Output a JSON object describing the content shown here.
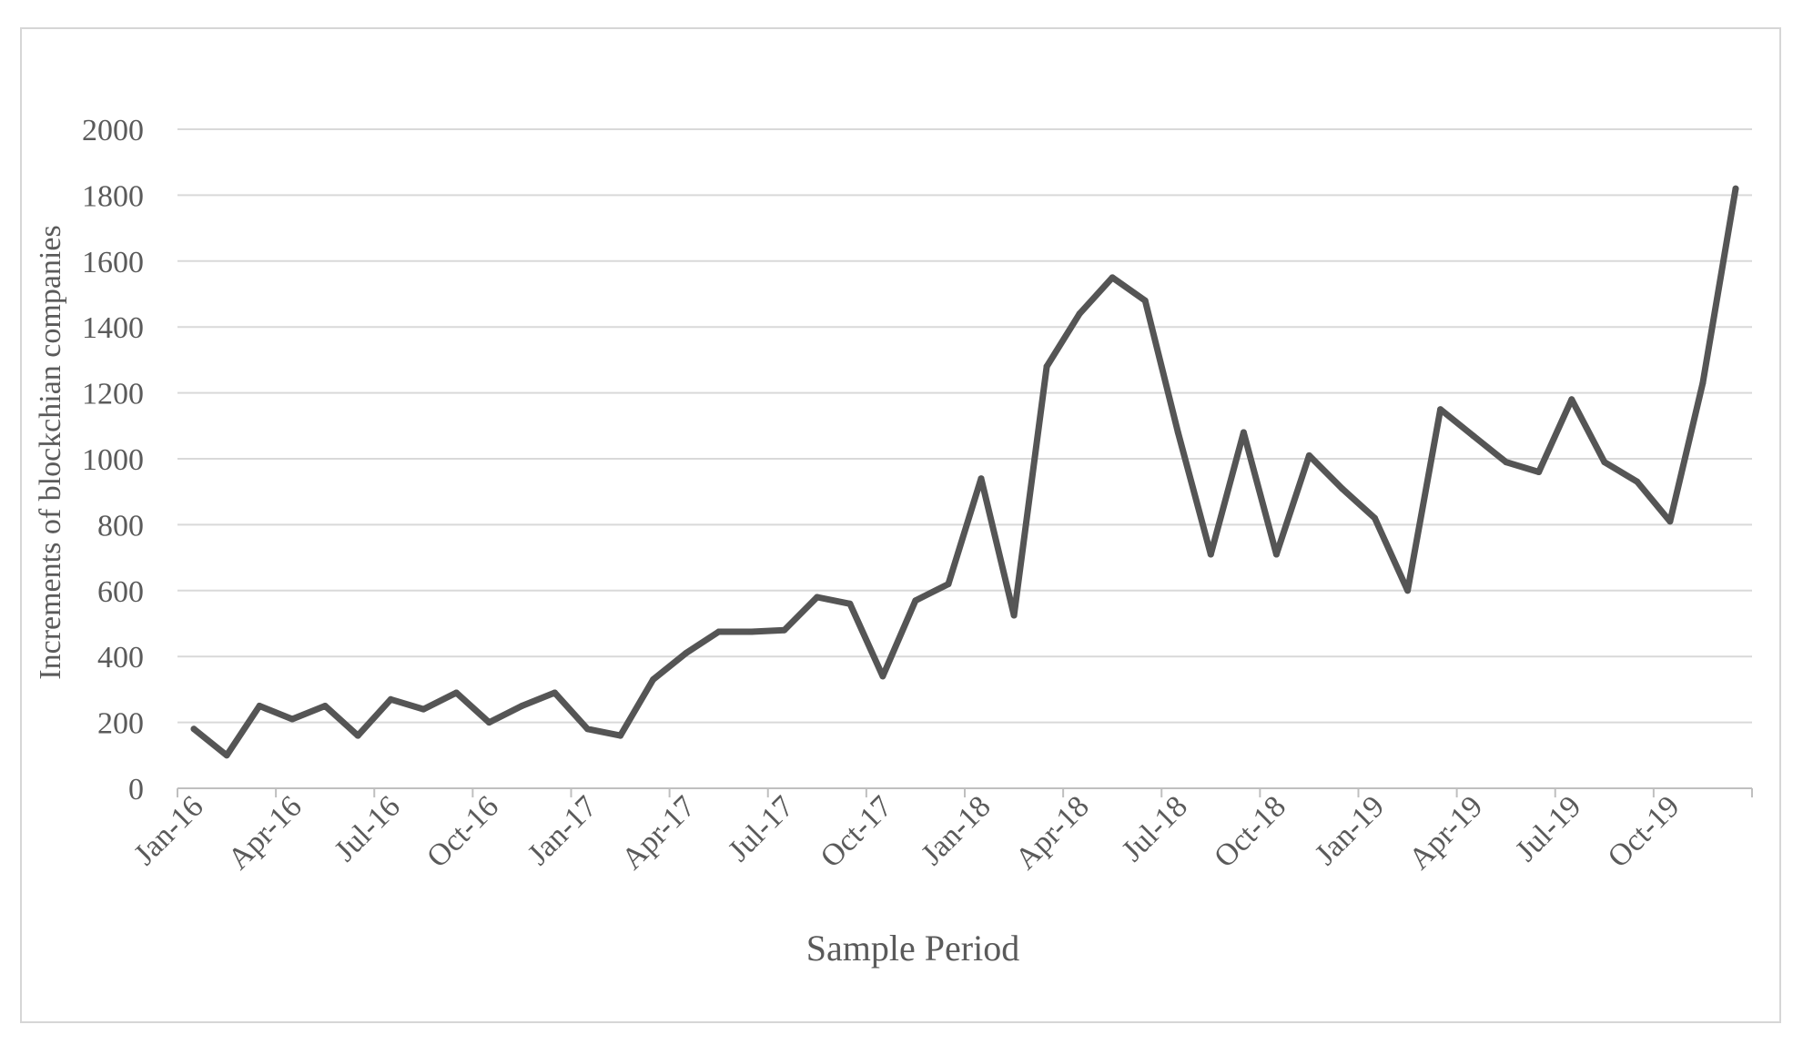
{
  "chart_data": {
    "type": "line",
    "title": "",
    "xlabel": "Sample Period",
    "ylabel": "Increments of blockchian companies",
    "ylim": [
      0,
      2000
    ],
    "yticks": [
      0,
      200,
      400,
      600,
      800,
      1000,
      1200,
      1400,
      1600,
      1800,
      2000
    ],
    "grid": true,
    "legend": "none",
    "colors": {
      "line": "#555555",
      "grid": "#d9d9d9",
      "axis": "#bfbfbf",
      "text": "#5a5a5a"
    },
    "x": [
      "Jan-16",
      "Feb-16",
      "Mar-16",
      "Apr-16",
      "May-16",
      "Jun-16",
      "Jul-16",
      "Aug-16",
      "Sep-16",
      "Oct-16",
      "Nov-16",
      "Dec-16",
      "Jan-17",
      "Feb-17",
      "Mar-17",
      "Apr-17",
      "May-17",
      "Jun-17",
      "Jul-17",
      "Aug-17",
      "Sep-17",
      "Oct-17",
      "Nov-17",
      "Dec-17",
      "Jan-18",
      "Feb-18",
      "Mar-18",
      "Apr-18",
      "May-18",
      "Jun-18",
      "Jul-18",
      "Aug-18",
      "Sep-18",
      "Oct-18",
      "Nov-18",
      "Dec-18",
      "Jan-19",
      "Feb-19",
      "Mar-19",
      "Apr-19",
      "May-19",
      "Jun-19",
      "Jul-19",
      "Aug-19",
      "Sep-19",
      "Oct-19",
      "Nov-19",
      "Dec-19"
    ],
    "x_tick_labels": [
      "Jan-16",
      "Apr-16",
      "Jul-16",
      "Oct-16",
      "Jan-17",
      "Apr-17",
      "Jul-17",
      "Oct-17",
      "Jan-18",
      "Apr-18",
      "Jul-18",
      "Oct-18",
      "Jan-19",
      "Apr-19",
      "Jul-19",
      "Oct-19"
    ],
    "series": [
      {
        "values": [
          180,
          100,
          250,
          210,
          250,
          160,
          270,
          240,
          290,
          200,
          250,
          290,
          180,
          160,
          330,
          410,
          475,
          475,
          480,
          580,
          560,
          340,
          570,
          620,
          940,
          525,
          1280,
          1440,
          1550,
          1480,
          1080,
          710,
          1080,
          710,
          1010,
          910,
          820,
          600,
          1150,
          1070,
          990,
          960,
          1180,
          990,
          930,
          810,
          1230,
          1820
        ]
      }
    ]
  }
}
